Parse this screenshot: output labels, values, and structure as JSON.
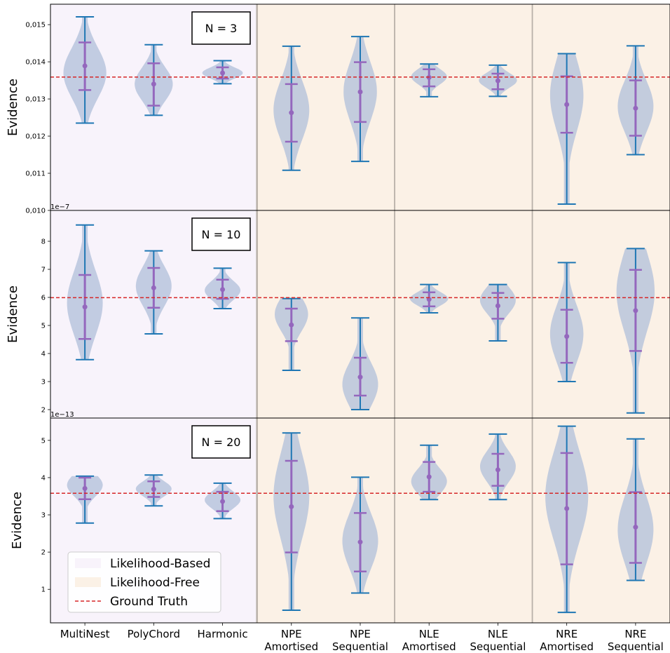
{
  "chart_data": {
    "type": "violin",
    "categories": [
      "MultiNest",
      "PolyChord",
      "Harmonic",
      "NPE\nAmortised",
      "NPE\nSequential",
      "NLE\nAmortised",
      "NLE\nSequential",
      "NRE\nAmortised",
      "NRE\nSequential"
    ],
    "groups": [
      {
        "label": "Likelihood-Based",
        "categories": [
          0,
          1,
          2
        ],
        "color": "#f8f3fb"
      },
      {
        "label": "Likelihood-Free",
        "categories": [
          3,
          4,
          5,
          6,
          7,
          8
        ],
        "color": "#fbf1e6"
      }
    ],
    "legend": {
      "placement": "lower-left",
      "entries": [
        {
          "label": "Likelihood-Based",
          "kind": "patch",
          "color": "#f8f3fb"
        },
        {
          "label": "Likelihood-Free",
          "kind": "patch",
          "color": "#fbf1e6"
        },
        {
          "label": "Ground Truth",
          "kind": "dashed-line",
          "color": "#d62728"
        }
      ]
    },
    "colors": {
      "violin": "#b0bfd9",
      "whisker": "#1f77b4",
      "quartile": "#9467bd",
      "truth": "#d62728"
    },
    "panels": [
      {
        "label": "N = 3",
        "ylabel": "Evidence",
        "offset_text": "",
        "ylim": [
          0.01,
          0.01555
        ],
        "yticks": [
          0.01,
          0.011,
          0.012,
          0.013,
          0.014,
          0.015
        ],
        "ytick_labels": [
          "0,010",
          "0,011",
          "0,012",
          "0,013",
          "0,014",
          "0,015"
        ],
        "ground_truth": 0.01359,
        "violins": [
          {
            "min": 0.01235,
            "q1": 0.01324,
            "mean": 0.01389,
            "q3": 0.01452,
            "max": 0.01521,
            "mode": 0.0137,
            "width": 0.9
          },
          {
            "min": 0.01256,
            "q1": 0.01282,
            "mean": 0.0134,
            "q3": 0.01396,
            "max": 0.01446,
            "mode": 0.0134,
            "width": 0.8
          },
          {
            "min": 0.01341,
            "q1": 0.01355,
            "mean": 0.0137,
            "q3": 0.01385,
            "max": 0.01403,
            "mode": 0.0137,
            "width": 0.85
          },
          {
            "min": 0.01108,
            "q1": 0.01185,
            "mean": 0.01263,
            "q3": 0.0134,
            "max": 0.01442,
            "mode": 0.0127,
            "width": 0.75
          },
          {
            "min": 0.01132,
            "q1": 0.01238,
            "mean": 0.01319,
            "q3": 0.01399,
            "max": 0.01468,
            "mode": 0.0132,
            "width": 0.7
          },
          {
            "min": 0.01306,
            "q1": 0.01334,
            "mean": 0.01358,
            "q3": 0.0138,
            "max": 0.01394,
            "mode": 0.0136,
            "width": 0.75
          },
          {
            "min": 0.01307,
            "q1": 0.01326,
            "mean": 0.01349,
            "q3": 0.01368,
            "max": 0.01391,
            "mode": 0.0135,
            "width": 0.8
          },
          {
            "min": 0.01017,
            "q1": 0.01209,
            "mean": 0.01285,
            "q3": 0.01361,
            "max": 0.01422,
            "mode": 0.0131,
            "width": 0.7
          },
          {
            "min": 0.0115,
            "q1": 0.01201,
            "mean": 0.01275,
            "q3": 0.0135,
            "max": 0.01443,
            "mode": 0.0128,
            "width": 0.75
          }
        ]
      },
      {
        "label": "N = 10",
        "ylabel": "Evidence",
        "offset_text": "1e−7",
        "ylim": [
          1.7,
          9.1
        ],
        "yticks": [
          2,
          3,
          4,
          5,
          6,
          7,
          8
        ],
        "ytick_labels": [
          "2",
          "3",
          "4",
          "5",
          "6",
          "7",
          "8"
        ],
        "ground_truth": 5.99,
        "violins": [
          {
            "min": 3.78,
            "q1": 4.52,
            "mean": 5.66,
            "q3": 6.8,
            "max": 8.58,
            "mode": 5.8,
            "width": 0.75
          },
          {
            "min": 4.7,
            "q1": 5.63,
            "mean": 6.34,
            "q3": 7.05,
            "max": 7.66,
            "mode": 6.4,
            "width": 0.75
          },
          {
            "min": 5.6,
            "q1": 5.95,
            "mean": 6.28,
            "q3": 6.63,
            "max": 7.04,
            "mode": 6.25,
            "width": 0.75
          },
          {
            "min": 3.4,
            "q1": 4.44,
            "mean": 5.02,
            "q3": 5.6,
            "max": 5.96,
            "mode": 5.4,
            "width": 0.7
          },
          {
            "min": 2.0,
            "q1": 2.5,
            "mean": 3.16,
            "q3": 3.85,
            "max": 5.27,
            "mode": 2.9,
            "width": 0.75
          },
          {
            "min": 5.45,
            "q1": 5.68,
            "mean": 5.93,
            "q3": 6.18,
            "max": 6.46,
            "mode": 5.95,
            "width": 0.8
          },
          {
            "min": 4.45,
            "q1": 5.24,
            "mean": 5.7,
            "q3": 6.16,
            "max": 6.46,
            "mode": 5.9,
            "width": 0.75
          },
          {
            "min": 3.0,
            "q1": 3.67,
            "mean": 4.61,
            "q3": 5.56,
            "max": 7.24,
            "mode": 4.7,
            "width": 0.7
          },
          {
            "min": 1.88,
            "q1": 4.09,
            "mean": 5.53,
            "q3": 6.98,
            "max": 7.74,
            "mode": 6.2,
            "width": 0.8
          }
        ]
      },
      {
        "label": "N = 20",
        "ylabel": "Evidence",
        "offset_text": "1e−13",
        "ylim": [
          0.1,
          5.6
        ],
        "yticks": [
          1,
          2,
          3,
          4,
          5
        ],
        "ytick_labels": [
          "1",
          "2",
          "3",
          "4",
          "5"
        ],
        "ground_truth": 3.58,
        "violins": [
          {
            "min": 2.78,
            "q1": 3.42,
            "mean": 3.71,
            "q3": 4.0,
            "max": 4.04,
            "mode": 3.8,
            "width": 0.75
          },
          {
            "min": 3.24,
            "q1": 3.48,
            "mean": 3.69,
            "q3": 3.9,
            "max": 4.07,
            "mode": 3.7,
            "width": 0.75
          },
          {
            "min": 2.9,
            "q1": 3.1,
            "mean": 3.36,
            "q3": 3.62,
            "max": 3.85,
            "mode": 3.4,
            "width": 0.75
          },
          {
            "min": 0.44,
            "q1": 1.99,
            "mean": 3.22,
            "q3": 4.45,
            "max": 5.2,
            "mode": 3.5,
            "width": 0.75
          },
          {
            "min": 0.9,
            "q1": 1.48,
            "mean": 2.27,
            "q3": 3.05,
            "max": 4.01,
            "mode": 2.3,
            "width": 0.75
          },
          {
            "min": 3.41,
            "q1": 3.62,
            "mean": 4.02,
            "q3": 4.42,
            "max": 4.87,
            "mode": 3.9,
            "width": 0.75
          },
          {
            "min": 3.41,
            "q1": 3.78,
            "mean": 4.21,
            "q3": 4.64,
            "max": 5.17,
            "mode": 4.3,
            "width": 0.75
          },
          {
            "min": 0.38,
            "q1": 1.67,
            "mean": 3.17,
            "q3": 4.66,
            "max": 5.38,
            "mode": 3.5,
            "width": 0.9
          },
          {
            "min": 1.24,
            "q1": 1.71,
            "mean": 2.67,
            "q3": 3.61,
            "max": 5.04,
            "mode": 2.6,
            "width": 0.75
          }
        ]
      }
    ]
  }
}
